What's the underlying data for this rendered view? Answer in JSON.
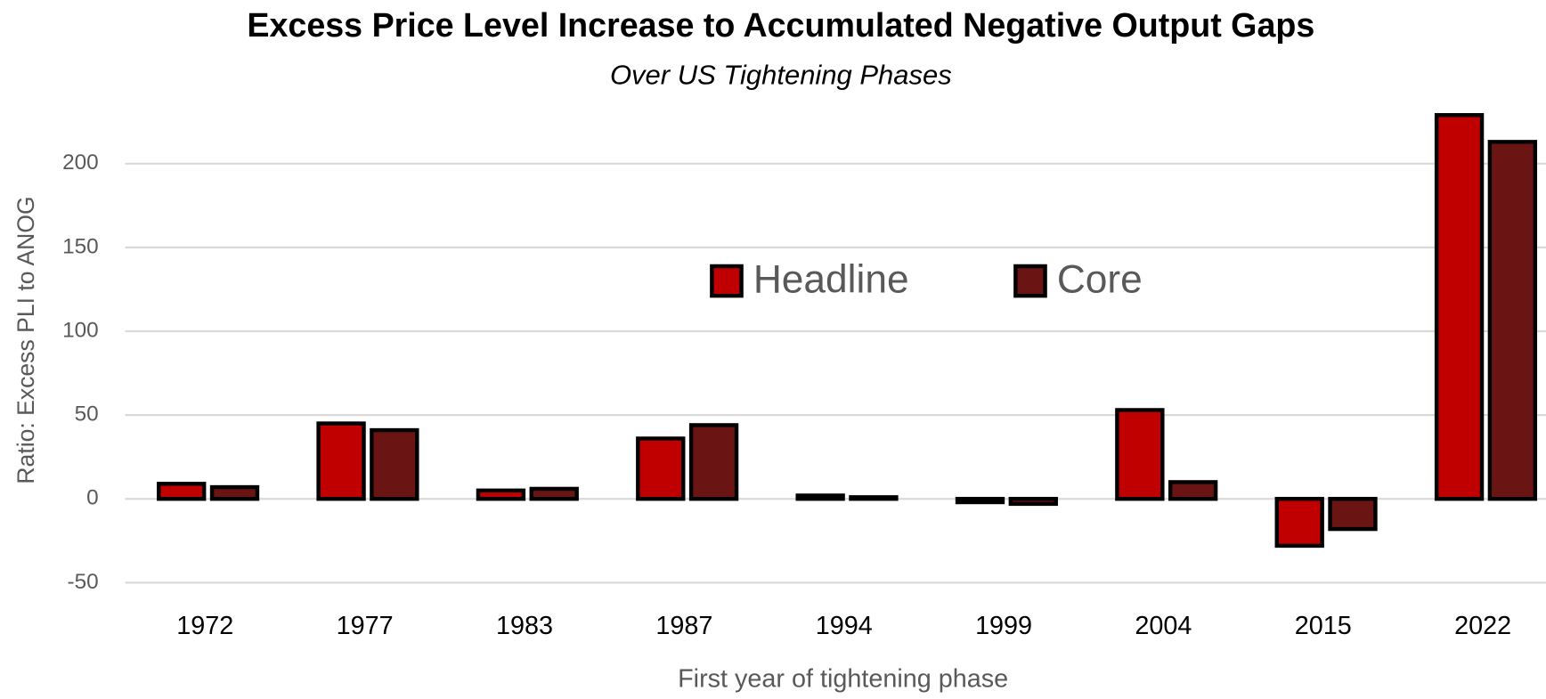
{
  "chart_data": {
    "type": "bar",
    "title": "Excess Price Level Increase to Accumulated Negative Output Gaps",
    "subtitle": "Over US Tightening Phases",
    "x_label": "First year of tightening phase",
    "y_label": "Ratio: Excess PLI to ANOG",
    "categories": [
      "1972",
      "1977",
      "1983",
      "1987",
      "1994",
      "1999",
      "2004",
      "2015",
      "2022"
    ],
    "series": [
      {
        "name": "Headline",
        "color": "#c00000",
        "values": [
          9,
          45,
          5,
          36,
          2,
          -2,
          53,
          -28,
          229
        ]
      },
      {
        "name": "Core",
        "color": "#6b1414",
        "values": [
          7,
          41,
          6,
          44,
          1,
          -3,
          10,
          -18,
          213
        ]
      }
    ],
    "ylim": [
      -60,
      235
    ],
    "yticks": [
      -50,
      0,
      50,
      100,
      150,
      200
    ],
    "grid": true
  }
}
